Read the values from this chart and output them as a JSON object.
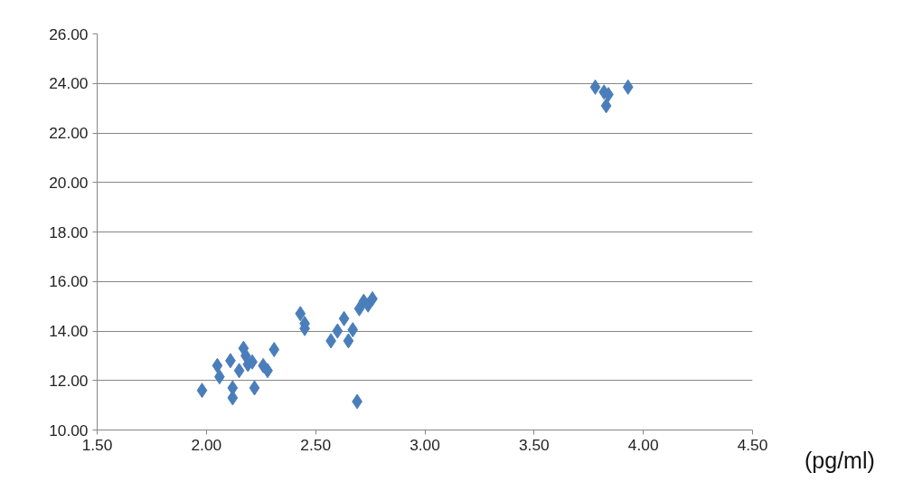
{
  "chart_data": {
    "type": "scatter",
    "xlabel": "(pg/ml)",
    "x": [
      1.98,
      2.05,
      2.06,
      2.11,
      2.12,
      2.12,
      2.15,
      2.17,
      2.18,
      2.19,
      2.21,
      2.22,
      2.26,
      2.28,
      2.31,
      2.43,
      2.45,
      2.45,
      2.57,
      2.6,
      2.63,
      2.65,
      2.67,
      2.7,
      2.72,
      2.74,
      2.76,
      2.69,
      3.78,
      3.82,
      3.84,
      3.83,
      3.93
    ],
    "values": [
      11.6,
      12.6,
      12.15,
      12.8,
      11.7,
      11.3,
      12.4,
      13.3,
      13.0,
      12.65,
      12.75,
      11.7,
      12.6,
      12.4,
      13.25,
      14.7,
      14.3,
      14.1,
      13.6,
      14.0,
      14.5,
      13.6,
      14.05,
      14.9,
      15.2,
      15.05,
      15.3,
      11.15,
      23.85,
      23.65,
      23.55,
      23.1,
      23.85
    ],
    "color": "#4a7ebb",
    "marker": "diamond",
    "xlim": [
      1.5,
      4.5
    ],
    "xticks": [
      {
        "value": 1.5,
        "label": "1.50"
      },
      {
        "value": 2.0,
        "label": "2.00"
      },
      {
        "value": 2.5,
        "label": "2.50"
      },
      {
        "value": 3.0,
        "label": "3.00"
      },
      {
        "value": 3.5,
        "label": "3.50"
      },
      {
        "value": 4.0,
        "label": "4.00"
      },
      {
        "value": 4.5,
        "label": "4.50"
      }
    ],
    "ylim": [
      10,
      26
    ],
    "yticks": [
      {
        "value": 10,
        "label": "10.00"
      },
      {
        "value": 12,
        "label": "12.00"
      },
      {
        "value": 14,
        "label": "14.00"
      },
      {
        "value": 16,
        "label": "16.00"
      },
      {
        "value": 18,
        "label": "18.00"
      },
      {
        "value": 20,
        "label": "20.00"
      },
      {
        "value": 22,
        "label": "22.00"
      },
      {
        "value": 24,
        "label": "24.00"
      },
      {
        "value": 26,
        "label": "26.00"
      }
    ],
    "grid": "y"
  }
}
